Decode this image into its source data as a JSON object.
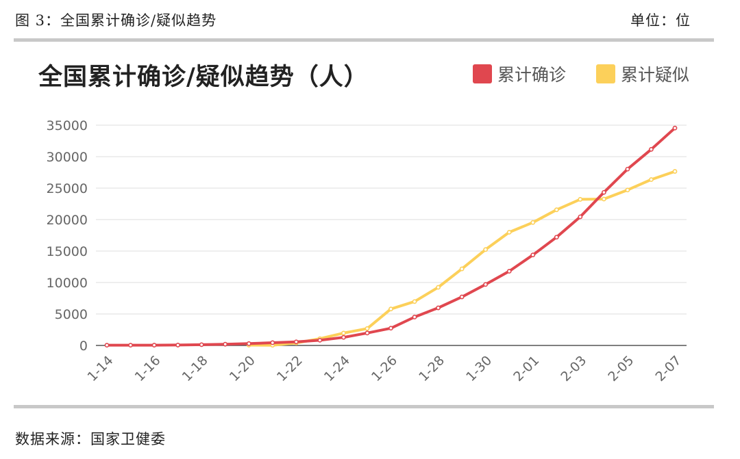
{
  "figure": {
    "caption": "图 3：全国累计确诊/疑似趋势",
    "unit": "单位：位",
    "source": "数据来源：国家卫健委"
  },
  "chart_data": {
    "type": "line",
    "title": "全国累计确诊/疑似趋势（人）",
    "xlabel": "",
    "ylabel": "",
    "ylim": [
      0,
      35000
    ],
    "yticks": [
      0,
      5000,
      10000,
      15000,
      20000,
      25000,
      30000,
      35000
    ],
    "grid": true,
    "legend_position": "top-right",
    "x_tick_labels": [
      "1-14",
      "1-16",
      "1-18",
      "1-20",
      "1-22",
      "1-24",
      "1-26",
      "1-28",
      "1-30",
      "2-01",
      "2-03",
      "2-05",
      "2-07"
    ],
    "x": [
      "1-14",
      "1-15",
      "1-16",
      "1-17",
      "1-18",
      "1-19",
      "1-20",
      "1-21",
      "1-22",
      "1-23",
      "1-24",
      "1-25",
      "1-26",
      "1-27",
      "1-28",
      "1-29",
      "1-30",
      "1-31",
      "2-01",
      "2-02",
      "2-03",
      "2-04",
      "2-05",
      "2-06",
      "2-07"
    ],
    "series": [
      {
        "name": "累计确诊",
        "color": "#e0474f",
        "values": [
          41,
          41,
          45,
          62,
          121,
          198,
          291,
          440,
          571,
          830,
          1287,
          1975,
          2744,
          4515,
          5974,
          7711,
          9692,
          11791,
          14380,
          17205,
          20438,
          24324,
          28018,
          31161,
          34546
        ]
      },
      {
        "name": "累计疑似",
        "color": "#fcd05a",
        "values": [
          null,
          null,
          null,
          null,
          null,
          null,
          54,
          37,
          393,
          1072,
          1965,
          2684,
          5794,
          6973,
          9239,
          12167,
          15238,
          17988,
          19544,
          21558,
          23214,
          23260,
          24702,
          26359,
          27657
        ]
      }
    ]
  }
}
